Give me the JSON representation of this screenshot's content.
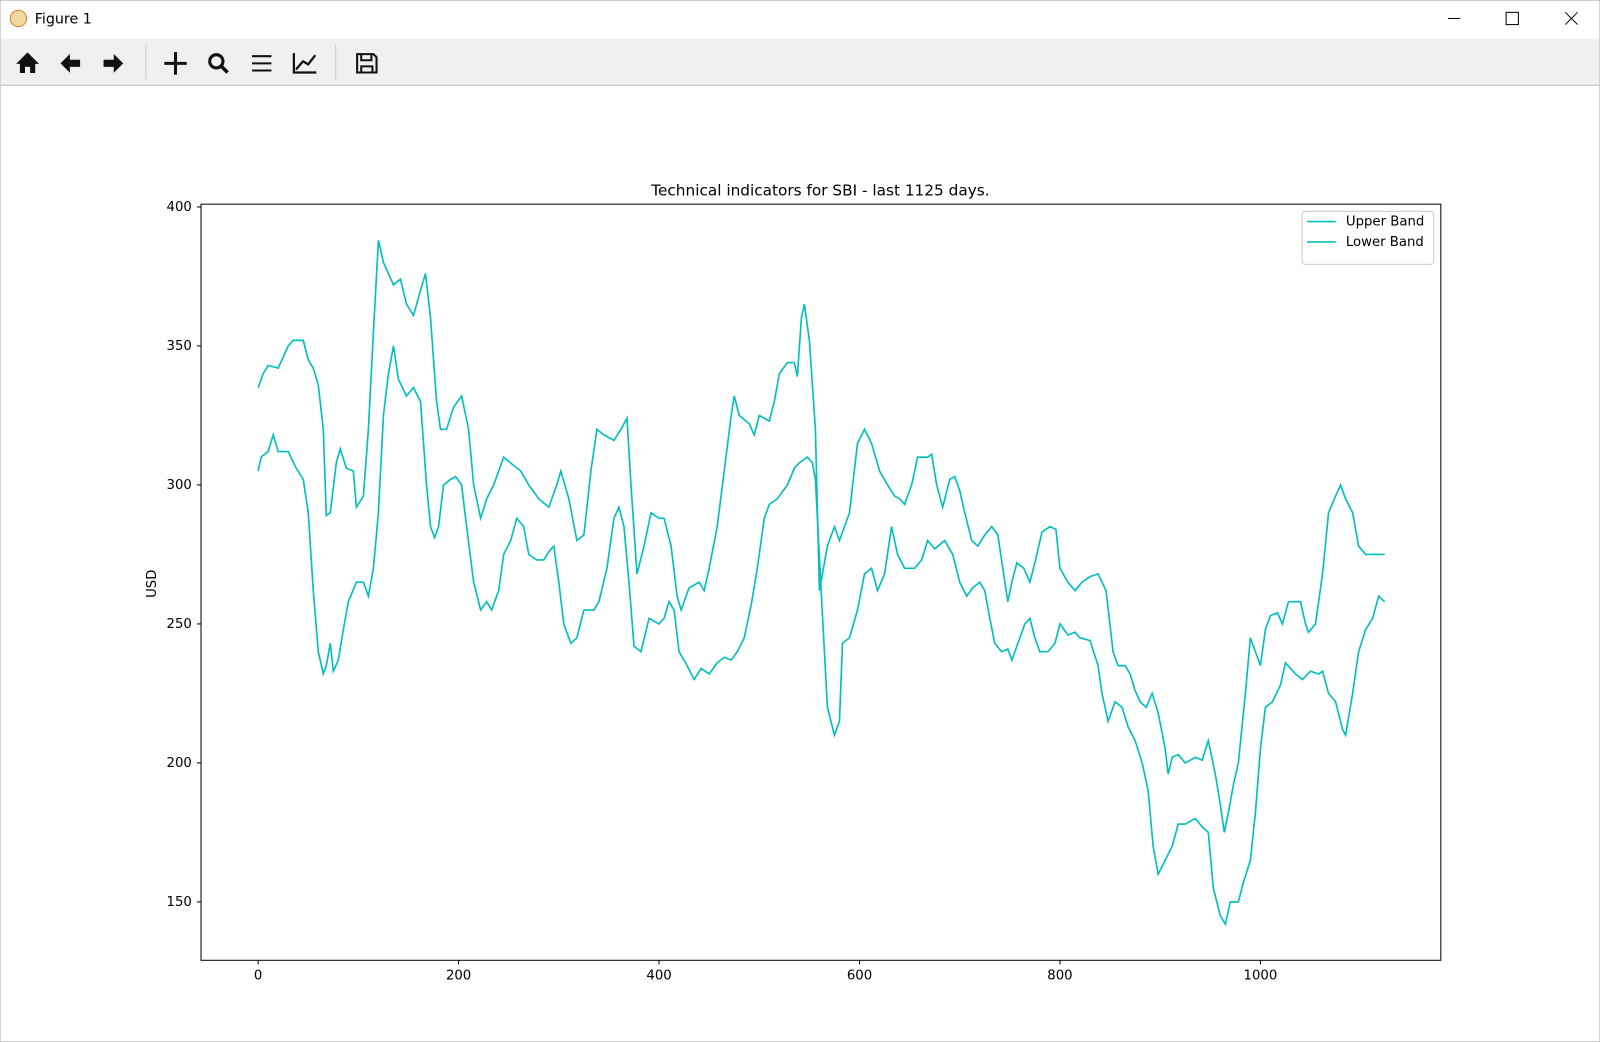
{
  "window": {
    "title": "Figure 1"
  },
  "chart_data": {
    "type": "line",
    "title": "Technical indicators for SBI - last 1125 days.",
    "ylabel": "USD",
    "xlim": [
      -57,
      1180
    ],
    "ylim": [
      129,
      401
    ],
    "xticks": [
      0,
      200,
      400,
      600,
      800,
      1000
    ],
    "yticks": [
      150,
      200,
      250,
      300,
      350,
      400
    ],
    "legend": "upper right",
    "series": [
      {
        "name": "Upper Band",
        "color": "#00bfbf",
        "x": [
          0,
          5,
          10,
          20,
          30,
          35,
          45,
          50,
          55,
          60,
          65,
          68,
          72,
          78,
          82,
          88,
          95,
          98,
          105,
          110,
          115,
          120,
          125,
          130,
          135,
          142,
          148,
          155,
          162,
          167,
          172,
          178,
          182,
          188,
          195,
          203,
          210,
          215,
          222,
          228,
          235,
          245,
          255,
          262,
          270,
          280,
          290,
          298,
          302,
          310,
          318,
          325,
          332,
          338,
          345,
          355,
          362,
          368,
          372,
          378,
          385,
          392,
          400,
          405,
          412,
          418,
          422,
          430,
          440,
          445,
          450,
          458,
          465,
          472,
          475,
          480,
          490,
          495,
          500,
          510,
          515,
          520,
          528,
          535,
          538,
          542,
          545,
          550,
          556,
          560,
          568,
          575,
          580,
          590,
          598,
          605,
          612,
          620,
          628,
          635,
          640,
          645,
          652,
          658,
          668,
          672,
          677,
          683,
          690,
          695,
          700,
          705,
          712,
          718,
          725,
          732,
          738,
          743,
          748,
          752,
          757,
          764,
          770,
          775,
          782,
          790,
          796,
          800,
          808,
          815,
          822,
          830,
          838,
          842,
          846,
          853,
          858,
          865,
          870,
          875,
          880,
          886,
          892,
          898,
          905,
          908,
          912,
          918,
          925,
          935,
          942,
          948,
          955,
          960,
          964,
          968,
          973,
          978,
          985,
          990,
          995,
          1000,
          1005,
          1010,
          1017,
          1022,
          1028,
          1035,
          1040,
          1045,
          1048,
          1055,
          1062,
          1068,
          1075,
          1080,
          1085,
          1092,
          1098,
          1105,
          1112,
          1124
        ],
        "values": [
          335,
          340,
          343,
          342,
          350,
          352,
          352,
          345,
          342,
          336,
          320,
          289,
          290,
          308,
          313,
          306,
          305,
          292,
          296,
          320,
          355,
          388,
          380,
          376,
          372,
          374,
          365,
          361,
          370,
          376,
          360,
          330,
          320,
          320,
          328,
          332,
          320,
          300,
          288,
          295,
          300,
          310,
          307,
          305,
          300,
          295,
          292,
          300,
          305,
          295,
          280,
          282,
          305,
          320,
          318,
          316,
          320,
          324,
          300,
          268,
          278,
          290,
          288,
          288,
          278,
          260,
          255,
          263,
          265,
          262,
          270,
          285,
          305,
          325,
          332,
          325,
          322,
          318,
          325,
          323,
          330,
          340,
          344,
          344,
          339,
          360,
          365,
          352,
          320,
          262,
          278,
          285,
          280,
          290,
          315,
          320,
          315,
          305,
          300,
          296,
          295,
          293,
          300,
          310,
          310,
          311,
          300,
          292,
          302,
          303,
          298,
          290,
          280,
          278,
          282,
          285,
          282,
          270,
          258,
          265,
          272,
          270,
          265,
          272,
          283,
          285,
          284,
          270,
          265,
          262,
          265,
          267,
          268,
          265,
          262,
          240,
          235,
          235,
          232,
          226,
          222,
          220,
          225,
          218,
          205,
          196,
          202,
          203,
          200,
          202,
          201,
          208,
          196,
          185,
          175,
          182,
          192,
          200,
          225,
          245,
          240,
          235,
          248,
          253,
          254,
          250,
          258,
          258,
          258,
          250,
          247,
          250,
          268,
          290,
          296,
          300,
          295,
          290,
          278,
          275,
          275,
          275
        ]
      },
      {
        "name": "Lower Band",
        "color": "#00bfbf",
        "x": [
          0,
          3,
          10,
          15,
          20,
          30,
          38,
          45,
          50,
          55,
          60,
          65,
          68,
          72,
          75,
          80,
          85,
          90,
          98,
          105,
          110,
          115,
          120,
          125,
          130,
          135,
          140,
          148,
          155,
          162,
          168,
          172,
          176,
          180,
          185,
          192,
          197,
          203,
          208,
          215,
          222,
          228,
          233,
          240,
          245,
          252,
          258,
          265,
          270,
          278,
          285,
          290,
          295,
          300,
          305,
          312,
          318,
          325,
          335,
          340,
          348,
          355,
          360,
          365,
          370,
          375,
          382,
          390,
          400,
          405,
          410,
          415,
          420,
          428,
          435,
          442,
          450,
          458,
          465,
          472,
          478,
          485,
          492,
          498,
          505,
          510,
          518,
          528,
          535,
          540,
          548,
          553,
          556,
          562,
          568,
          575,
          580,
          583,
          590,
          598,
          605,
          612,
          618,
          625,
          632,
          638,
          645,
          655,
          662,
          668,
          675,
          685,
          693,
          700,
          707,
          713,
          720,
          725,
          730,
          735,
          742,
          748,
          752,
          758,
          765,
          770,
          775,
          780,
          788,
          795,
          800,
          808,
          815,
          820,
          830,
          838,
          842,
          848,
          855,
          862,
          868,
          875,
          882,
          888,
          893,
          898,
          905,
          912,
          918,
          925,
          935,
          942,
          948,
          953,
          960,
          965,
          970,
          978,
          983,
          990,
          995,
          1000,
          1005,
          1012,
          1020,
          1025,
          1030,
          1035,
          1042,
          1050,
          1058,
          1062,
          1068,
          1075,
          1082,
          1085,
          1092,
          1098,
          1105,
          1112,
          1118,
          1124
        ],
        "values": [
          305,
          310,
          312,
          318,
          312,
          312,
          306,
          302,
          290,
          262,
          240,
          232,
          235,
          243,
          233,
          237,
          248,
          258,
          265,
          265,
          260,
          270,
          290,
          325,
          340,
          350,
          338,
          332,
          335,
          330,
          300,
          285,
          281,
          285,
          300,
          302,
          303,
          300,
          285,
          265,
          255,
          258,
          255,
          262,
          275,
          280,
          288,
          285,
          275,
          273,
          273,
          276,
          278,
          265,
          250,
          243,
          245,
          255,
          255,
          258,
          270,
          288,
          292,
          285,
          265,
          242,
          240,
          252,
          250,
          252,
          258,
          255,
          240,
          235,
          230,
          234,
          232,
          236,
          238,
          237,
          240,
          245,
          257,
          270,
          288,
          293,
          295,
          300,
          306,
          308,
          310,
          308,
          302,
          260,
          220,
          210,
          215,
          243,
          245,
          255,
          268,
          270,
          262,
          268,
          285,
          275,
          270,
          270,
          273,
          280,
          277,
          280,
          275,
          265,
          260,
          263,
          265,
          262,
          252,
          243,
          240,
          241,
          237,
          243,
          250,
          252,
          245,
          240,
          240,
          243,
          250,
          246,
          247,
          245,
          244,
          235,
          225,
          215,
          222,
          220,
          213,
          208,
          200,
          190,
          170,
          160,
          165,
          170,
          178,
          178,
          180,
          177,
          175,
          155,
          145,
          142,
          150,
          150,
          157,
          165,
          182,
          205,
          220,
          222,
          228,
          236,
          234,
          232,
          230,
          233,
          232,
          233,
          225,
          222,
          212,
          210,
          225,
          240,
          248,
          252,
          260,
          258
        ]
      }
    ]
  }
}
